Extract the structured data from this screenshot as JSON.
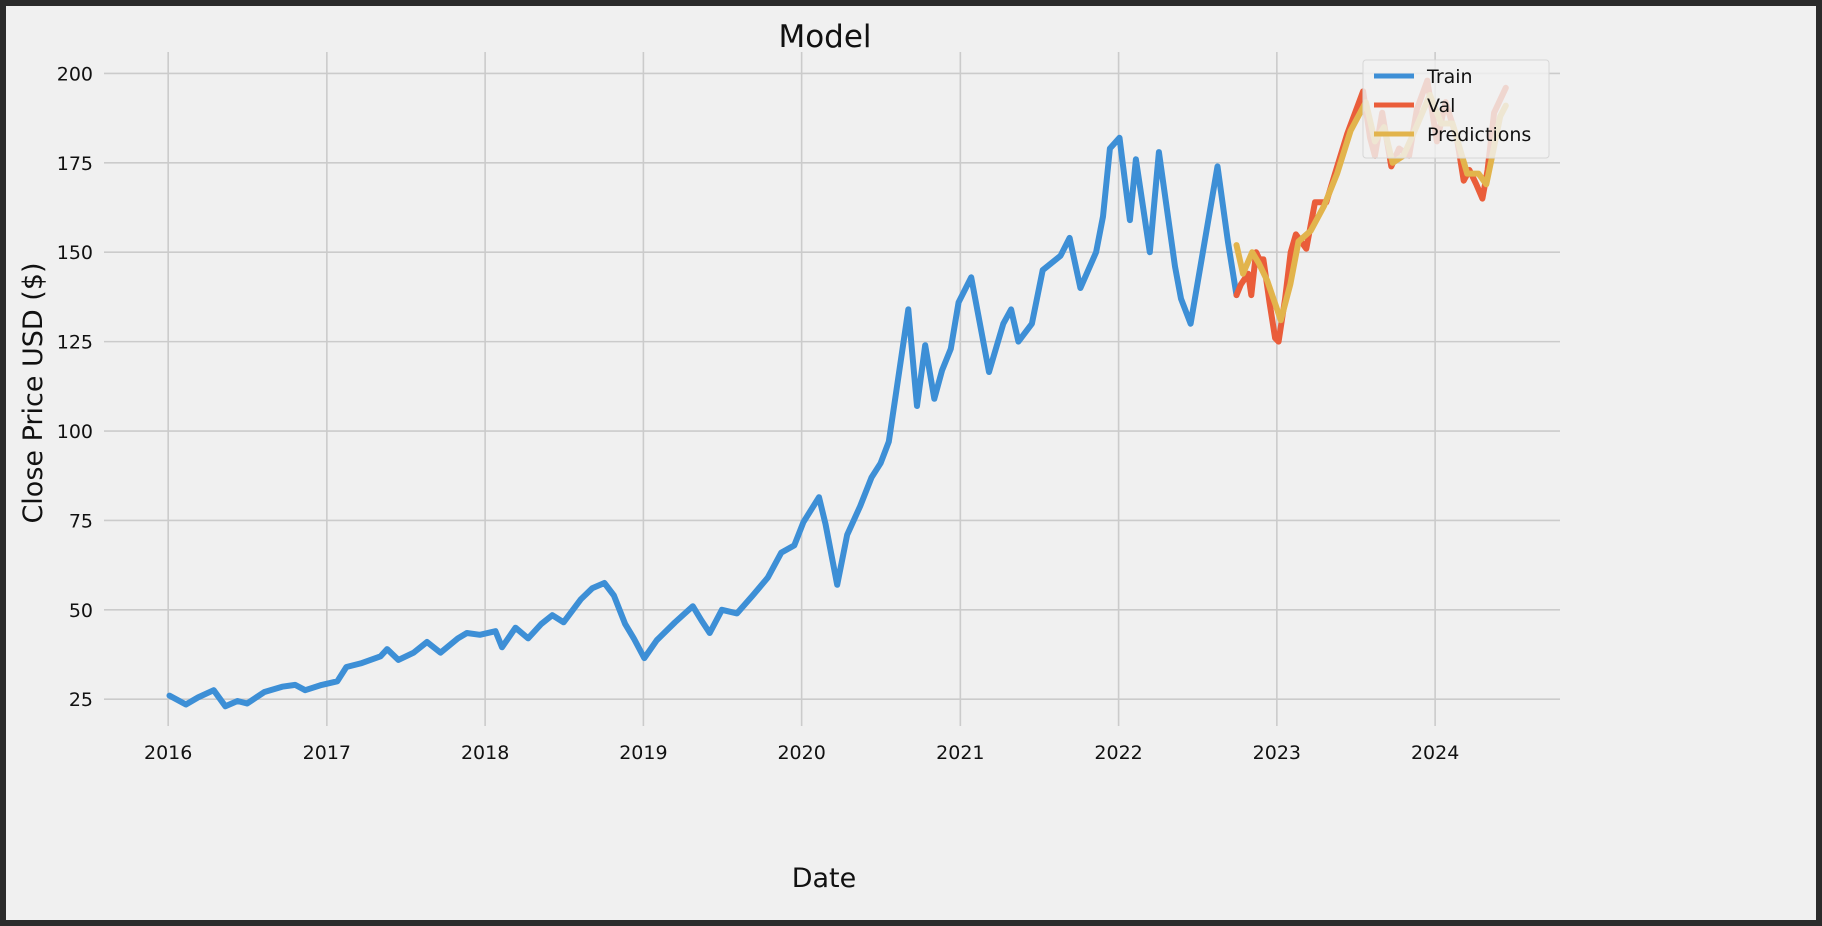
{
  "chart_data": {
    "type": "line",
    "title": "Model",
    "xlabel": "Date",
    "ylabel": "Close Price USD ($)",
    "x_range": [
      "2015-08-06",
      "2024-10-15"
    ],
    "ylim": [
      17.5,
      206
    ],
    "x_ticks": [
      "2016",
      "2017",
      "2018",
      "2019",
      "2020",
      "2021",
      "2022",
      "2023",
      "2024"
    ],
    "y_ticks": [
      25,
      50,
      75,
      100,
      125,
      150,
      175,
      200
    ],
    "grid": true,
    "legend_position": "top-right",
    "colors": {
      "Train": "#3d8fd6",
      "Val": "#ea5d3a",
      "Predictions": "#e2b44c",
      "grid": "#cbcbcb",
      "background": "#f0f0f0",
      "frame": "#2b2b2b"
    },
    "series": [
      {
        "name": "Train",
        "points": [
          [
            "2016-01-04",
            26
          ],
          [
            "2016-02-11",
            23.5
          ],
          [
            "2016-03-10",
            25.5
          ],
          [
            "2016-04-15",
            27.5
          ],
          [
            "2016-05-12",
            23
          ],
          [
            "2016-06-09",
            24.5
          ],
          [
            "2016-07-01",
            23.8
          ],
          [
            "2016-08-10",
            27
          ],
          [
            "2016-09-20",
            28.5
          ],
          [
            "2016-10-20",
            29
          ],
          [
            "2016-11-12",
            27.5
          ],
          [
            "2016-12-20",
            29
          ],
          [
            "2017-01-25",
            30
          ],
          [
            "2017-02-15",
            34
          ],
          [
            "2017-03-20",
            35
          ],
          [
            "2017-05-05",
            37
          ],
          [
            "2017-05-20",
            39
          ],
          [
            "2017-06-15",
            36
          ],
          [
            "2017-07-20",
            38
          ],
          [
            "2017-08-20",
            41
          ],
          [
            "2017-09-20",
            38
          ],
          [
            "2017-10-30",
            42
          ],
          [
            "2017-11-20",
            43.5
          ],
          [
            "2017-12-20",
            43
          ],
          [
            "2018-01-25",
            44
          ],
          [
            "2018-02-09",
            39.5
          ],
          [
            "2018-03-12",
            45
          ],
          [
            "2018-04-10",
            42
          ],
          [
            "2018-05-10",
            46
          ],
          [
            "2018-06-05",
            48.5
          ],
          [
            "2018-07-01",
            46.5
          ],
          [
            "2018-08-10",
            53
          ],
          [
            "2018-09-05",
            56
          ],
          [
            "2018-10-03",
            57.5
          ],
          [
            "2018-10-25",
            54
          ],
          [
            "2018-11-20",
            46
          ],
          [
            "2018-12-10",
            42
          ],
          [
            "2019-01-03",
            36.5
          ],
          [
            "2019-02-01",
            41.5
          ],
          [
            "2019-03-15",
            46.5
          ],
          [
            "2019-04-25",
            51
          ],
          [
            "2019-05-15",
            47
          ],
          [
            "2019-06-03",
            43.5
          ],
          [
            "2019-07-01",
            50
          ],
          [
            "2019-08-05",
            49
          ],
          [
            "2019-09-10",
            54
          ],
          [
            "2019-10-15",
            59
          ],
          [
            "2019-11-15",
            66
          ],
          [
            "2019-12-15",
            68
          ],
          [
            "2020-01-05",
            74.5
          ],
          [
            "2020-02-10",
            81.5
          ],
          [
            "2020-02-25",
            74
          ],
          [
            "2020-03-23",
            57
          ],
          [
            "2020-04-15",
            71
          ],
          [
            "2020-05-15",
            79
          ],
          [
            "2020-06-10",
            87
          ],
          [
            "2020-07-01",
            91
          ],
          [
            "2020-07-20",
            97
          ],
          [
            "2020-08-05",
            110
          ],
          [
            "2020-08-28",
            129
          ],
          [
            "2020-09-03",
            134
          ],
          [
            "2020-09-23",
            107
          ],
          [
            "2020-10-12",
            124
          ],
          [
            "2020-11-02",
            109
          ],
          [
            "2020-11-20",
            117
          ],
          [
            "2020-12-10",
            123
          ],
          [
            "2020-12-28",
            136
          ],
          [
            "2021-01-26",
            143
          ],
          [
            "2021-03-08",
            116.5
          ],
          [
            "2021-04-10",
            130
          ],
          [
            "2021-04-28",
            134
          ],
          [
            "2021-05-15",
            125
          ],
          [
            "2021-06-15",
            130
          ],
          [
            "2021-07-10",
            145
          ],
          [
            "2021-08-20",
            149
          ],
          [
            "2021-09-10",
            154
          ],
          [
            "2021-10-05",
            140
          ],
          [
            "2021-11-10",
            150
          ],
          [
            "2021-11-26",
            160
          ],
          [
            "2021-12-12",
            179
          ],
          [
            "2022-01-03",
            182
          ],
          [
            "2022-01-27",
            159
          ],
          [
            "2022-02-10",
            176
          ],
          [
            "2022-03-14",
            150
          ],
          [
            "2022-04-04",
            178
          ],
          [
            "2022-05-11",
            146
          ],
          [
            "2022-05-25",
            137
          ],
          [
            "2022-06-16",
            130
          ],
          [
            "2022-07-10",
            147
          ],
          [
            "2022-08-17",
            174
          ],
          [
            "2022-09-10",
            153
          ],
          [
            "2022-09-30",
            138
          ]
        ]
      },
      {
        "name": "Val",
        "points": [
          [
            "2022-09-30",
            138
          ],
          [
            "2022-10-10",
            141
          ],
          [
            "2022-10-27",
            144
          ],
          [
            "2022-11-03",
            138
          ],
          [
            "2022-11-14",
            150
          ],
          [
            "2022-11-22",
            148
          ],
          [
            "2022-12-01",
            148
          ],
          [
            "2022-12-15",
            136
          ],
          [
            "2022-12-28",
            126
          ],
          [
            "2023-01-05",
            125
          ],
          [
            "2023-01-20",
            137
          ],
          [
            "2023-02-02",
            150
          ],
          [
            "2023-02-14",
            155
          ],
          [
            "2023-03-10",
            151
          ],
          [
            "2023-03-30",
            164
          ],
          [
            "2023-04-25",
            164
          ],
          [
            "2023-05-15",
            172
          ],
          [
            "2023-06-12",
            183
          ],
          [
            "2023-07-19",
            195
          ],
          [
            "2023-08-04",
            182
          ],
          [
            "2023-08-15",
            177
          ],
          [
            "2023-09-01",
            189
          ],
          [
            "2023-09-22",
            174
          ],
          [
            "2023-10-10",
            179
          ],
          [
            "2023-11-02",
            177
          ],
          [
            "2023-11-20",
            190
          ],
          [
            "2023-12-14",
            198
          ],
          [
            "2024-01-05",
            181
          ],
          [
            "2024-01-25",
            192
          ],
          [
            "2024-02-20",
            182
          ],
          [
            "2024-03-07",
            170
          ],
          [
            "2024-03-20",
            173
          ],
          [
            "2024-04-05",
            169
          ],
          [
            "2024-04-19",
            165
          ],
          [
            "2024-05-01",
            173
          ],
          [
            "2024-05-16",
            189
          ],
          [
            "2024-06-12",
            196
          ]
        ]
      },
      {
        "name": "Predictions",
        "points": [
          [
            "2022-09-30",
            152
          ],
          [
            "2022-10-15",
            144
          ],
          [
            "2022-11-05",
            150
          ],
          [
            "2022-11-20",
            147
          ],
          [
            "2022-12-10",
            142
          ],
          [
            "2023-01-10",
            131
          ],
          [
            "2023-02-01",
            141
          ],
          [
            "2023-02-20",
            153
          ],
          [
            "2023-03-20",
            156
          ],
          [
            "2023-04-20",
            163
          ],
          [
            "2023-05-20",
            172
          ],
          [
            "2023-06-20",
            184
          ],
          [
            "2023-07-25",
            192
          ],
          [
            "2023-08-15",
            181
          ],
          [
            "2023-09-05",
            185
          ],
          [
            "2023-09-25",
            175
          ],
          [
            "2023-10-20",
            177
          ],
          [
            "2023-11-15",
            184
          ],
          [
            "2023-12-20",
            194
          ],
          [
            "2024-01-15",
            186
          ],
          [
            "2024-02-10",
            186
          ],
          [
            "2024-03-15",
            172
          ],
          [
            "2024-04-10",
            172
          ],
          [
            "2024-04-28",
            169
          ],
          [
            "2024-05-10",
            176
          ],
          [
            "2024-05-30",
            188
          ],
          [
            "2024-06-12",
            191
          ]
        ]
      }
    ]
  }
}
